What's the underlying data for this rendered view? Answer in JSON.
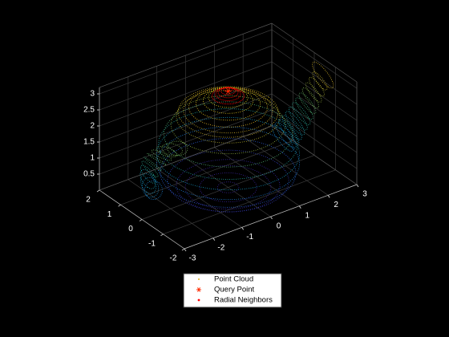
{
  "chart_data": {
    "type": "scatter3d",
    "xlim": [
      -3,
      3
    ],
    "ylim": [
      -2,
      2
    ],
    "zlim": [
      0,
      3.2
    ],
    "xticks": [
      -3,
      -2,
      -1,
      0,
      1,
      2,
      3
    ],
    "yticks": [
      -2,
      -1,
      0,
      1,
      2
    ],
    "zticks": [
      0.5,
      1,
      1.5,
      2,
      2.5,
      3
    ],
    "grid": true,
    "legend": "bottom",
    "series": [
      {
        "name": "Point Cloud",
        "color": "#e6b422"
      },
      {
        "name": "Query Point",
        "color": "#ff2a00"
      },
      {
        "name": "Radial Neighbors",
        "color": "#ff0000"
      }
    ]
  }
}
